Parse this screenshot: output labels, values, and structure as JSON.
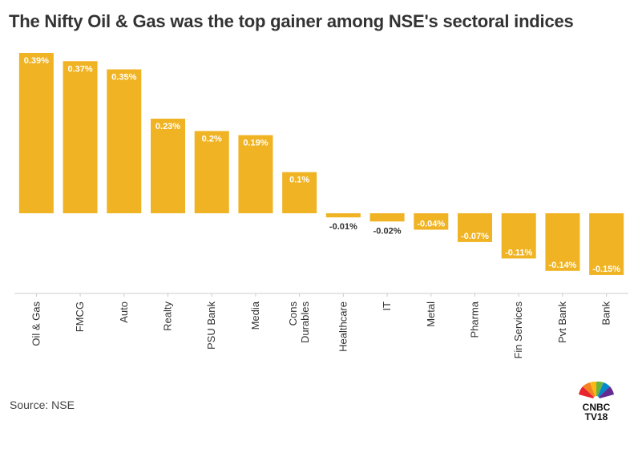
{
  "title": "The Nifty Oil & Gas was the top gainer among NSE's sectoral indices",
  "source": "Source: NSE",
  "logo": {
    "line1": "CNBC",
    "line2": "TV18"
  },
  "colors": {
    "bar": "#f0b323",
    "label_text_positive": "#ffffff",
    "label_text_negative": "#333333",
    "axis": "#cccccc"
  },
  "chart_data": {
    "type": "bar",
    "categories": [
      "Oil & Gas",
      "FMCG",
      "Auto",
      "Realty",
      "PSU Bank",
      "Media",
      "Cons Durables",
      "Healthcare",
      "IT",
      "Metal",
      "Pharma",
      "Fin Services",
      "Pvt Bank",
      "Bank"
    ],
    "category_lines": [
      [
        "Oil & Gas"
      ],
      [
        "FMCG"
      ],
      [
        "Auto"
      ],
      [
        "Realty"
      ],
      [
        "PSU Bank"
      ],
      [
        "Media"
      ],
      [
        "Cons",
        "Durables"
      ],
      [
        "Healthcare"
      ],
      [
        "IT"
      ],
      [
        "Metal"
      ],
      [
        "Pharma"
      ],
      [
        "Fin Services"
      ],
      [
        "Pvt Bank"
      ],
      [
        "Bank"
      ]
    ],
    "values": [
      0.39,
      0.37,
      0.35,
      0.23,
      0.2,
      0.19,
      0.1,
      -0.01,
      -0.02,
      -0.04,
      -0.07,
      -0.11,
      -0.14,
      -0.15
    ],
    "data_labels": [
      "0.39%",
      "0.37%",
      "0.35%",
      "0.23%",
      "0.2%",
      "0.19%",
      "0.1%",
      "-0.01%",
      "-0.02%",
      "-0.04%",
      "-0.07%",
      "-0.11%",
      "-0.14%",
      "-0.15%"
    ],
    "title": "The Nifty Oil & Gas was the top gainer among NSE's sectoral indices",
    "xlabel": "",
    "ylabel": "",
    "ylim": [
      -0.195,
      0.39
    ],
    "grid": false,
    "legend": "none"
  }
}
